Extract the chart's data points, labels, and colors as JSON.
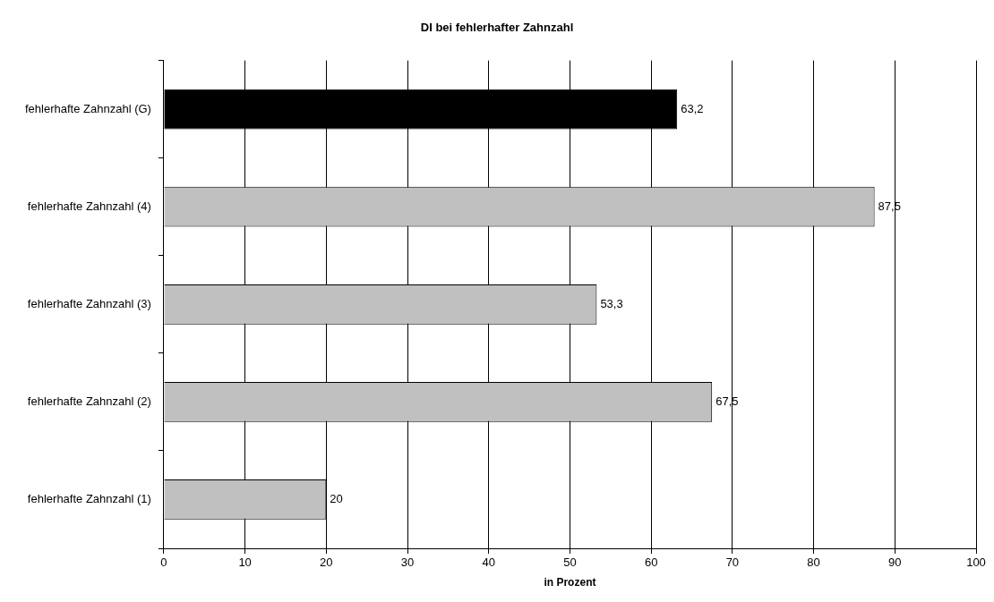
{
  "chart_data": {
    "type": "bar",
    "orientation": "horizontal",
    "title": "DI bei fehlerhafter Zahnzahl",
    "xlabel": "in Prozent",
    "categories": [
      "fehlerhafte Zahnzahl (G)",
      "fehlerhafte Zahnzahl (4)",
      "fehlerhafte Zahnzahl (3)",
      "fehlerhafte Zahnzahl (2)",
      "fehlerhafte Zahnzahl (1)"
    ],
    "values": [
      63.2,
      87.5,
      53.3,
      67.5,
      20
    ],
    "value_labels": [
      "63,2",
      "87,5",
      "53,3",
      "67,5",
      "20"
    ],
    "colors": [
      "#000000",
      "#c0c0c0",
      "#c0c0c0",
      "#c0c0c0",
      "#c0c0c0"
    ],
    "xlim": [
      0,
      100
    ],
    "xticks": [
      0,
      10,
      20,
      30,
      40,
      50,
      60,
      70,
      80,
      90,
      100
    ],
    "grid": "x",
    "legend": false
  }
}
